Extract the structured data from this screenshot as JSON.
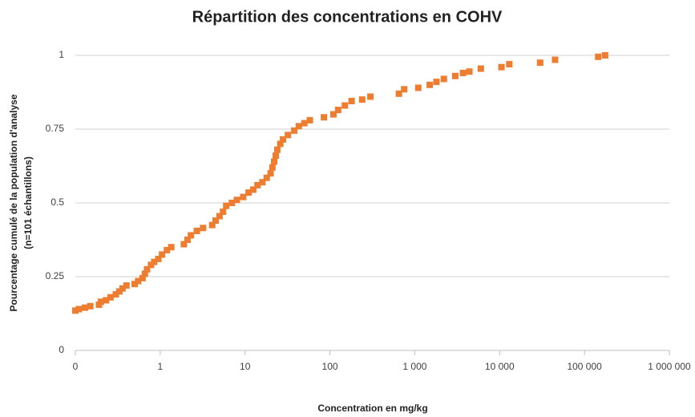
{
  "chart_data": {
    "type": "scatter",
    "title": "Répartition des concentrations en COHV",
    "xlabel": "Concentration en mg/kg",
    "ylabel": [
      "Pourcentage cumulé de la population d'analyse",
      "(n=101 échantillons)"
    ],
    "xscale": "log",
    "grid": true,
    "xlim": [
      0.1,
      1000000
    ],
    "xticks": [
      {
        "value": 0.1,
        "label": "0"
      },
      1,
      10,
      100,
      {
        "value": 1000,
        "label": "1 000"
      },
      {
        "value": 10000,
        "label": "10 000"
      },
      {
        "value": 100000,
        "label": "100 000"
      },
      {
        "value": 1000000,
        "label": "1 000 000"
      }
    ],
    "ylim": [
      0,
      1
    ],
    "yticks": [
      0,
      0.25,
      0.5,
      0.75,
      1
    ],
    "series": [
      {
        "color": "#ed7d31",
        "x": [
          0.1,
          0.11,
          0.13,
          0.15,
          0.19,
          0.2,
          0.23,
          0.26,
          0.3,
          0.33,
          0.36,
          0.4,
          0.5,
          0.55,
          0.62,
          0.66,
          0.7,
          0.78,
          0.85,
          0.95,
          1.05,
          1.2,
          1.35,
          1.9,
          2.1,
          2.3,
          2.7,
          3.2,
          4.1,
          4.5,
          5.0,
          5.5,
          6.0,
          7.0,
          8.0,
          9.5,
          11,
          12.5,
          14,
          16,
          18,
          20,
          21,
          22,
          23,
          24,
          26,
          28,
          32,
          38,
          43,
          50,
          58,
          85,
          110,
          125,
          150,
          180,
          240,
          300,
          650,
          750,
          1100,
          1500,
          1800,
          2200,
          3000,
          3700,
          4400,
          6000,
          10500,
          13000,
          30000,
          45000,
          145000,
          175000
        ],
        "values": [
          0.135,
          0.14,
          0.145,
          0.15,
          0.155,
          0.165,
          0.17,
          0.18,
          0.19,
          0.2,
          0.21,
          0.22,
          0.225,
          0.235,
          0.245,
          0.26,
          0.275,
          0.29,
          0.3,
          0.31,
          0.325,
          0.34,
          0.35,
          0.36,
          0.375,
          0.39,
          0.405,
          0.415,
          0.425,
          0.44,
          0.455,
          0.47,
          0.49,
          0.5,
          0.51,
          0.52,
          0.535,
          0.545,
          0.56,
          0.57,
          0.585,
          0.6,
          0.62,
          0.64,
          0.66,
          0.68,
          0.7,
          0.715,
          0.73,
          0.745,
          0.76,
          0.77,
          0.78,
          0.79,
          0.8,
          0.815,
          0.83,
          0.845,
          0.85,
          0.86,
          0.87,
          0.885,
          0.89,
          0.9,
          0.91,
          0.92,
          0.93,
          0.94,
          0.945,
          0.955,
          0.96,
          0.97,
          0.975,
          0.985,
          0.995,
          1
        ]
      }
    ]
  }
}
